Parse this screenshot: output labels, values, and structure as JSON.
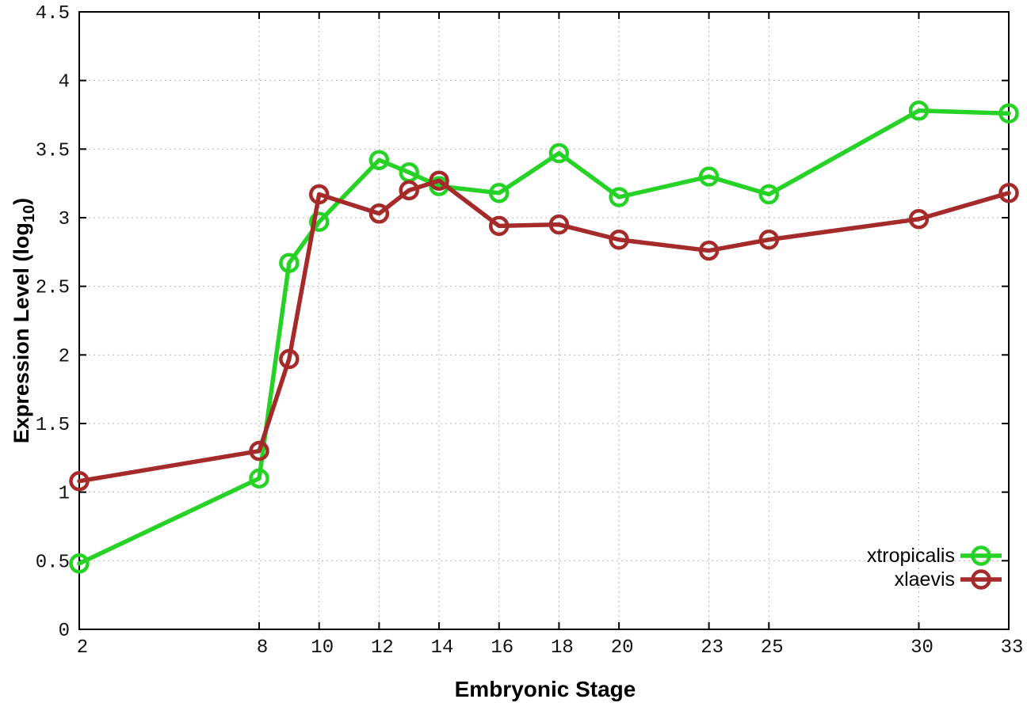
{
  "figure": {
    "background": "#ffffff",
    "xlabel": "Embryonic Stage",
    "ylabel_parts": {
      "main": "Expression Level (log",
      "sub": "10",
      "close": ")"
    }
  },
  "chart_data": {
    "type": "line",
    "title": "",
    "xlabel": "Embryonic Stage",
    "ylabel": "Expression Level (log10)",
    "x": [
      2,
      8,
      9,
      10,
      12,
      13,
      14,
      16,
      18,
      20,
      23,
      25,
      30,
      33
    ],
    "series": [
      {
        "name": "xtropicalis",
        "color": "#26d226",
        "values": [
          0.48,
          1.1,
          2.67,
          2.97,
          3.42,
          3.33,
          3.23,
          3.18,
          3.47,
          3.15,
          3.3,
          3.17,
          3.78,
          3.76
        ]
      },
      {
        "name": "xlaevis",
        "color": "#a52a2a",
        "values": [
          1.08,
          1.3,
          1.97,
          3.17,
          3.03,
          3.2,
          3.27,
          2.94,
          2.95,
          2.84,
          2.76,
          2.84,
          2.99,
          3.18
        ]
      }
    ],
    "xticks": [
      2,
      8,
      10,
      12,
      14,
      16,
      18,
      20,
      23,
      25,
      30,
      33
    ],
    "yticks": [
      0,
      0.5,
      1,
      1.5,
      2,
      2.5,
      3,
      3.5,
      4,
      4.5
    ],
    "xlim": [
      2,
      33
    ],
    "ylim": [
      0,
      4.5
    ],
    "grid": true,
    "grid_style": "dotted",
    "legend_position": "bottom-right-inside",
    "marker": "open-circle"
  },
  "colors": {
    "axis": "#000000",
    "grid": "#b5b5b5",
    "tick_label": "#111111"
  }
}
